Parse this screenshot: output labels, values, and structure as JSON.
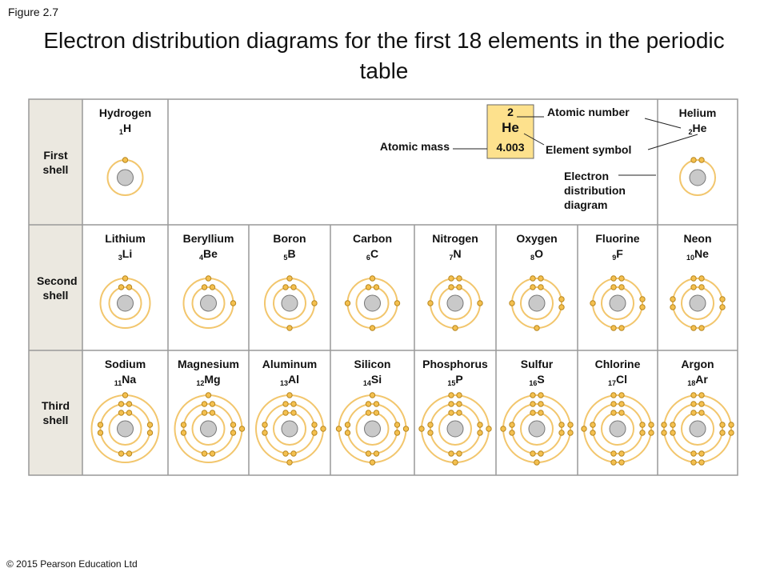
{
  "figure_label": "Figure 2.7",
  "title": "Electron distribution diagrams for the first 18 elements in the periodic table",
  "copyright": "© 2015 Pearson Education Ltd",
  "rows": [
    {
      "label": "First shell",
      "elements": [
        {
          "name": "Hydrogen",
          "number": 1,
          "symbol": "H"
        },
        {
          "name": "Helium",
          "number": 2,
          "symbol": "He"
        }
      ]
    },
    {
      "label": "Second shell",
      "elements": [
        {
          "name": "Lithium",
          "number": 3,
          "symbol": "Li"
        },
        {
          "name": "Beryllium",
          "number": 4,
          "symbol": "Be"
        },
        {
          "name": "Boron",
          "number": 5,
          "symbol": "B"
        },
        {
          "name": "Carbon",
          "number": 6,
          "symbol": "C"
        },
        {
          "name": "Nitrogen",
          "number": 7,
          "symbol": "N"
        },
        {
          "name": "Oxygen",
          "number": 8,
          "symbol": "O"
        },
        {
          "name": "Fluorine",
          "number": 9,
          "symbol": "F"
        },
        {
          "name": "Neon",
          "number": 10,
          "symbol": "Ne"
        }
      ]
    },
    {
      "label": "Third shell",
      "elements": [
        {
          "name": "Sodium",
          "number": 11,
          "symbol": "Na"
        },
        {
          "name": "Magnesium",
          "number": 12,
          "symbol": "Mg"
        },
        {
          "name": "Aluminum",
          "number": 13,
          "symbol": "Al"
        },
        {
          "name": "Silicon",
          "number": 14,
          "symbol": "Si"
        },
        {
          "name": "Phosphorus",
          "number": 15,
          "symbol": "P"
        },
        {
          "name": "Sulfur",
          "number": 16,
          "symbol": "S"
        },
        {
          "name": "Chlorine",
          "number": 17,
          "symbol": "Cl"
        },
        {
          "name": "Argon",
          "number": 18,
          "symbol": "Ar"
        }
      ]
    }
  ],
  "key": {
    "atomic_number": 2,
    "symbol": "He",
    "atomic_mass": "4.003",
    "atomic_number_label": "Atomic number",
    "atomic_mass_label": "Atomic mass",
    "element_symbol_label": "Element symbol",
    "diagram_label": "Electron distribution diagram"
  }
}
